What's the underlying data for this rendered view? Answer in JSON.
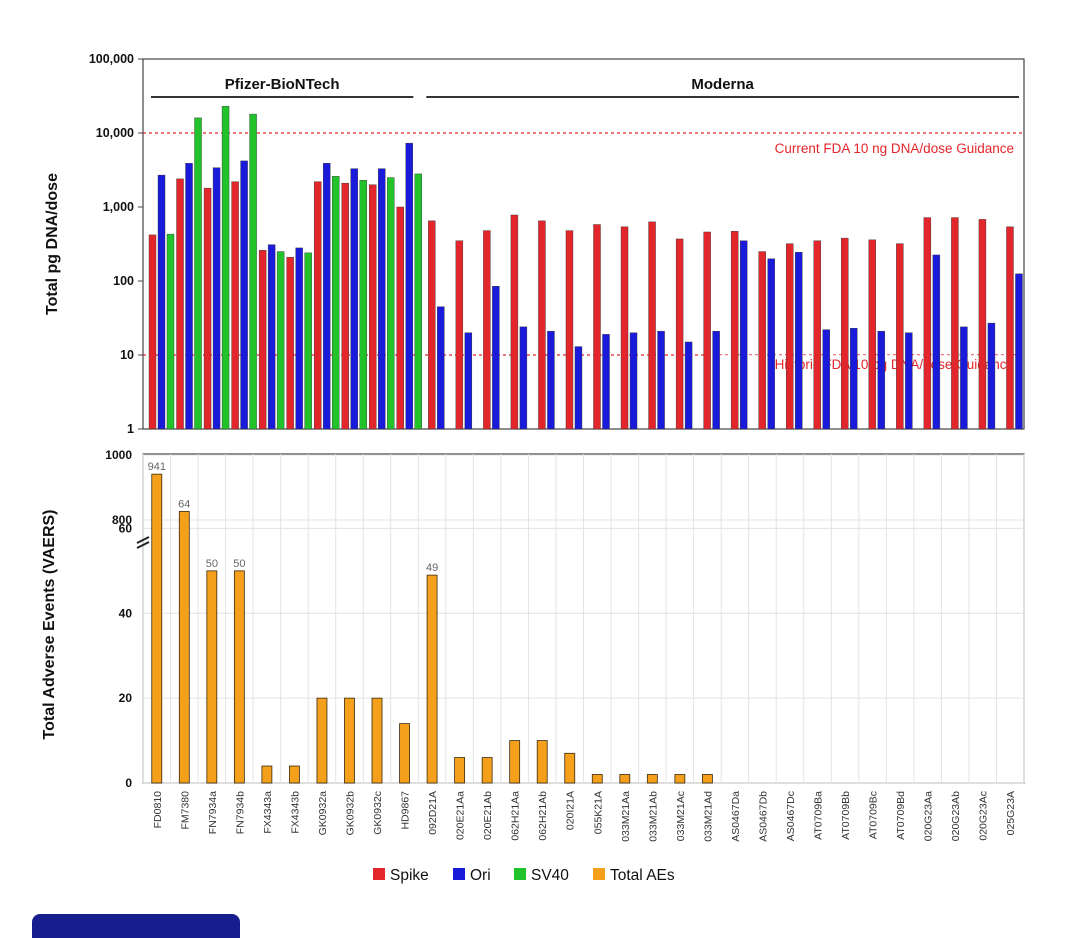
{
  "chart_data": [
    {
      "type": "bar",
      "title": "",
      "xlabel": "",
      "ylabel": "Total pg DNA/dose",
      "yscale": "log",
      "ylim": [
        1,
        100000
      ],
      "yticks": [
        "1",
        "10",
        "100",
        "1,000",
        "10,000",
        "100,000"
      ],
      "categories": [
        "FD0810",
        "FM7380",
        "FN7934a",
        "FN7934b",
        "FX4343a",
        "FX4343b",
        "GK0932a",
        "GK0932b",
        "GK0932c",
        "HD9867",
        "092D21A",
        "020E21Aa",
        "020E21Ab",
        "062H21Aa",
        "062H21Ab",
        "020I21A",
        "055K21A",
        "033M21Aa",
        "033M21Ab",
        "033M21Ac",
        "033M21Ad",
        "AS0467Da",
        "AS0467Db",
        "AS0467Dc",
        "AT0709Ba",
        "AT0709Bb",
        "AT0709Bc",
        "AT0709Bd",
        "020G23Aa",
        "020G23Ab",
        "020G23Ac",
        "025G23A"
      ],
      "series": [
        {
          "name": "Spike",
          "color": "#e3262b",
          "values": [
            420,
            2400,
            1800,
            2200,
            260,
            210,
            2200,
            2100,
            2000,
            1000,
            650,
            350,
            480,
            780,
            650,
            480,
            580,
            540,
            630,
            370,
            460,
            470,
            250,
            320,
            350,
            380,
            360,
            320,
            720,
            720,
            680,
            540
          ]
        },
        {
          "name": "Ori",
          "color": "#1a1adb",
          "values": [
            2700,
            3900,
            3400,
            4200,
            310,
            280,
            3900,
            3300,
            3300,
            7300,
            45,
            20,
            85,
            24,
            21,
            13,
            19,
            20,
            21,
            15,
            21,
            350,
            200,
            245,
            22,
            23,
            21,
            20,
            225,
            24,
            27,
            125
          ]
        },
        {
          "name": "SV40",
          "color": "#22c22a",
          "values": [
            430,
            16000,
            23000,
            18000,
            250,
            240,
            2600,
            2300,
            2500,
            2800,
            null,
            null,
            null,
            null,
            null,
            null,
            null,
            null,
            null,
            null,
            null,
            null,
            null,
            null,
            null,
            null,
            null,
            null,
            null,
            null,
            null,
            null
          ]
        }
      ],
      "groups": [
        {
          "label": "Pfizer-BioNTech",
          "from": 0,
          "to": 9
        },
        {
          "label": "Moderna",
          "from": 10,
          "to": 31
        }
      ],
      "reference_lines": [
        {
          "value": 10000,
          "label": "Current FDA 10 ng DNA/dose Guidance",
          "color": "#e3262b"
        },
        {
          "value": 10,
          "label": "Historic FDA 10 pg DNA/dose Guidance",
          "color": "#e3262b"
        }
      ]
    },
    {
      "type": "bar",
      "title": "",
      "xlabel": "",
      "ylabel": "Total Adverse Events (VAERS)",
      "ylim": [
        0,
        1000
      ],
      "axis_break": "between 60 and 800",
      "yticks": [
        "0",
        "20",
        "40",
        "60",
        "800",
        "1000"
      ],
      "categories": [
        "FD0810",
        "FM7380",
        "FN7934a",
        "FN7934b",
        "FX4343a",
        "FX4343b",
        "GK0932a",
        "GK0932b",
        "GK0932c",
        "HD9867",
        "092D21A",
        "020E21Aa",
        "020E21Ab",
        "062H21Aa",
        "062H21Ab",
        "020I21A",
        "055K21A",
        "033M21Aa",
        "033M21Ab",
        "033M21Ac",
        "033M21Ad",
        "AS0467Da",
        "AS0467Db",
        "AS0467Dc",
        "AT0709Ba",
        "AT0709Bb",
        "AT0709Bc",
        "AT0709Bd",
        "020G23Aa",
        "020G23Ab",
        "020G23Ac",
        "025G23A"
      ],
      "series": [
        {
          "name": "Total AEs",
          "color": "#f5a01a",
          "values": [
            941,
            64,
            50,
            50,
            4,
            4,
            20,
            20,
            20,
            14,
            49,
            6,
            6,
            10,
            10,
            7,
            2,
            2,
            2,
            2,
            2,
            0,
            0,
            0,
            0,
            0,
            0,
            0,
            0,
            0,
            0,
            0
          ]
        }
      ],
      "data_labels": [
        "941",
        "64",
        "50",
        "50",
        "",
        "",
        "",
        "",
        "",
        "",
        "49",
        "",
        "",
        "",
        "",
        "",
        "",
        "",
        "",
        "",
        "",
        "",
        "",
        "",
        "",
        "",
        "",
        "",
        "",
        "",
        "",
        ""
      ]
    }
  ],
  "legend": [
    {
      "label": "Spike",
      "color": "#e3262b"
    },
    {
      "label": "Ori",
      "color": "#1a1adb"
    },
    {
      "label": "SV40",
      "color": "#22c22a"
    },
    {
      "label": "Total AEs",
      "color": "#f5a01a"
    }
  ]
}
